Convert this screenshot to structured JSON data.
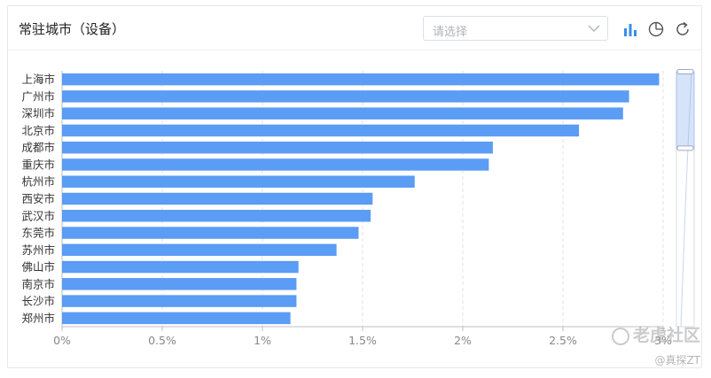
{
  "header": {
    "title": "常驻城市（设备）",
    "select_placeholder": "请选择",
    "icons": [
      "bar-chart-icon",
      "pie-chart-icon",
      "refresh-icon"
    ]
  },
  "watermark": {
    "text": "老虎社区",
    "sub": "@真探ZT"
  },
  "colors": {
    "bar": "#5b9cf4",
    "grid": "#e3e3e3",
    "axis": "#bfbfbf",
    "tick": "#888888",
    "icon": "#3a8ee6"
  },
  "chart_data": {
    "type": "bar",
    "orientation": "horizontal",
    "categories": [
      "上海市",
      "广州市",
      "深圳市",
      "北京市",
      "成都市",
      "重庆市",
      "杭州市",
      "西安市",
      "武汉市",
      "东莞市",
      "苏州市",
      "佛山市",
      "南京市",
      "长沙市",
      "郑州市"
    ],
    "series": [
      {
        "values": [
          2.98,
          2.83,
          2.8,
          2.58,
          2.15,
          2.13,
          1.76,
          1.55,
          1.54,
          1.48,
          1.37,
          1.18,
          1.17,
          1.17,
          1.14
        ]
      }
    ],
    "xlim": [
      0,
      3
    ],
    "xticks": [
      0,
      0.5,
      1,
      1.5,
      2,
      2.5,
      3
    ],
    "xtick_labels": [
      "0%",
      "0.5%",
      "1%",
      "1.5%",
      "2%",
      "2.5%",
      "3%"
    ],
    "grid": true,
    "data_zoom": {
      "start": 0,
      "end": 0.3
    }
  }
}
